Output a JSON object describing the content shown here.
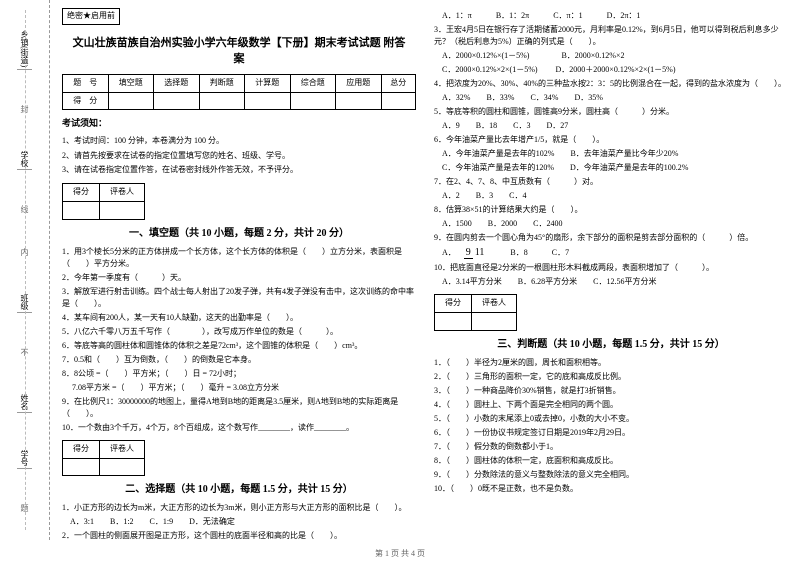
{
  "binding": {
    "labels": [
      "乡镇(街道)",
      "封",
      "学校",
      "线",
      "内",
      "班级",
      "不",
      "姓名",
      "学号",
      "题"
    ],
    "hints": [
      "绝密★启用前"
    ]
  },
  "header": {
    "secret": "绝密★启用前",
    "title_l1": "文山壮族苗族自治州实验小学六年级数学【下册】期末考试试题 附答",
    "title_l2": "案"
  },
  "score_table": {
    "cols": [
      "题　号",
      "填空题",
      "选择题",
      "判断题",
      "计算题",
      "综合题",
      "应用题",
      "总分"
    ],
    "row2": "得　分"
  },
  "notice": {
    "head": "考试须知：",
    "items": [
      "1、考试时间：100 分钟，本卷满分为 100 分。",
      "2、请首先按要求在试卷的指定位置填写您的姓名、班级、学号。",
      "3、请在试卷指定位置作答，在试卷密封线外作答无效，不予评分。"
    ]
  },
  "s1": {
    "grade": [
      "得分",
      "评卷人"
    ],
    "title": "一、填空题（共 10 小题，每题 2 分，共计 20 分）",
    "q": [
      "1．用3个棱长5分米的正方体拼成一个长方体，这个长方体的体积是（　　）立方分米，表面积是（　　）平方分米。",
      "2．今年第一季度有（　　　）天。",
      "3．解放军进行射击训练。四个战士每人射出了20发子弹，共有4发子弹没有击中，这次训练的命中率是（　　）。",
      "4．某车间有200人，某一天有10人缺勤，这天的出勤率是（　　）。",
      "5．八亿六千零八万五千写作（　　　　），改写成万作单位的数是（　　　）。",
      "6．等底等高的圆柱体和圆锥体的体积之差是72cm³，这个圆锥的体积是（　　）cm³。",
      "7．0.5和（　　）互为倒数，（　　）的倒数是它本身。",
      "8．8公顷 =（　　）平方米；（　　）日 = 72小时；",
      "　 7.08平方米 =（　　）平方米；（　　）毫升 = 3.08立方分米",
      "9．在比例尺1：30000000的地图上，量得A地到B地的距离是3.5厘米，则A地到B地的实际距离是（　　）。",
      "10．一个数由3个千万，4个万，8个百组成，这个数写作________，读作________。"
    ]
  },
  "s2": {
    "grade": [
      "得分",
      "评卷人"
    ],
    "title": "二、选择题（共 10 小题，每题 1.5 分，共计 15 分）",
    "left_q": [
      "1．小正方形的边长为m米，大正方形的边长为3m米，则小正方形与大正方形的面积比是（　　）。",
      "　A．3:1　　B．1:2　　C．1:9　　D．无法确定",
      "2．一个圆柱的侧面展开图是正方形，这个圆柱的底面半径和高的比是（　　）。"
    ],
    "right_q": [
      "　A．1：π　　　B．1：2π　　　C．π：1　　　D．2π：1",
      "3．王宏4月5日在银行存了活期储蓄2000元，月利率是0.12%，到6月5日，他可以得到税后利息多少元？（税后利息为5%）正确的列式是（　　）。",
      "　A．2000×0.12%×(1－5%)　　　　B．2000×0.12%×2",
      "　C．2000×0.12%×2×(1－5%)　　 D．2000＋2000×0.12%×2×(1－5%)",
      "4．把浓度为20%、30%、40%的三种盐水按2：3：5的比例混合在一起，得到的盐水浓度为（　　）。",
      "　A．32%　　B．33%　　C．34%　　D．35%",
      "5．等底等积的圆柱和圆锥，圆锥高9分米，圆柱高（　　　）分米。",
      "　A．9　　B．18　　C．3　　D．27",
      "6．今年油菜产量比去年增产1/5，就是（　　）。",
      "　A．今年油菜产量是去年的102%　　B．去年油菜产量比今年少20%",
      "　C．今年油菜产量是去年的120%　　D．今年油菜产量是去年的100.2%",
      "7．在2、4、7、8、中互质数有（　　　）对。",
      "　A．2　　B．3　　C．4",
      "8．估算38×51的计算结果大约是（　　）。",
      "　A．1500　　B．2000　　C．2400",
      "9．在圆内剪去一个圆心角为45°的扇形，余下部分的面积是剪去部分面积的（　　　）倍。"
    ],
    "frac": {
      "n": "9",
      "d": "11",
      "opts": "　　B．8　　　C．7"
    },
    "q10": "10．把底面直径是2分米的一根圆柱形木料截成两段，表面积增加了（　　　）。",
    "q10o": "　A．3.14平方分米　　B．6.28平方分米　　C．12.56平方分米"
  },
  "s3": {
    "grade": [
      "得分",
      "评卷人"
    ],
    "title": "三、判断题（共 10 小题，每题 1.5 分，共计 15 分）",
    "q": [
      "1．（　　）半径为2厘米的圆，周长和面积相等。",
      "2．（　　）三角形的面积一定，它的底和高成反比例。",
      "3．（　　）一种商品降价30%销售，就是打3折销售。",
      "4．（　　）圆柱上、下两个面是完全相同的两个圆。",
      "5．（　　）小数的末尾添上0或去掉0，小数的大小不变。",
      "6．（　　）一份协议书规定签订日期是2019年2月29日。",
      "7．（　　）假分数的倒数都小于1。",
      "8．（　　）圆柱体的体积一定，底面积和高成反比。",
      "9．（　　）分数除法的意义与整数除法的意义完全相同。",
      "10．（　　）0既不是正数，也不是负数。"
    ]
  },
  "footer": "第 1 页 共 4 页"
}
